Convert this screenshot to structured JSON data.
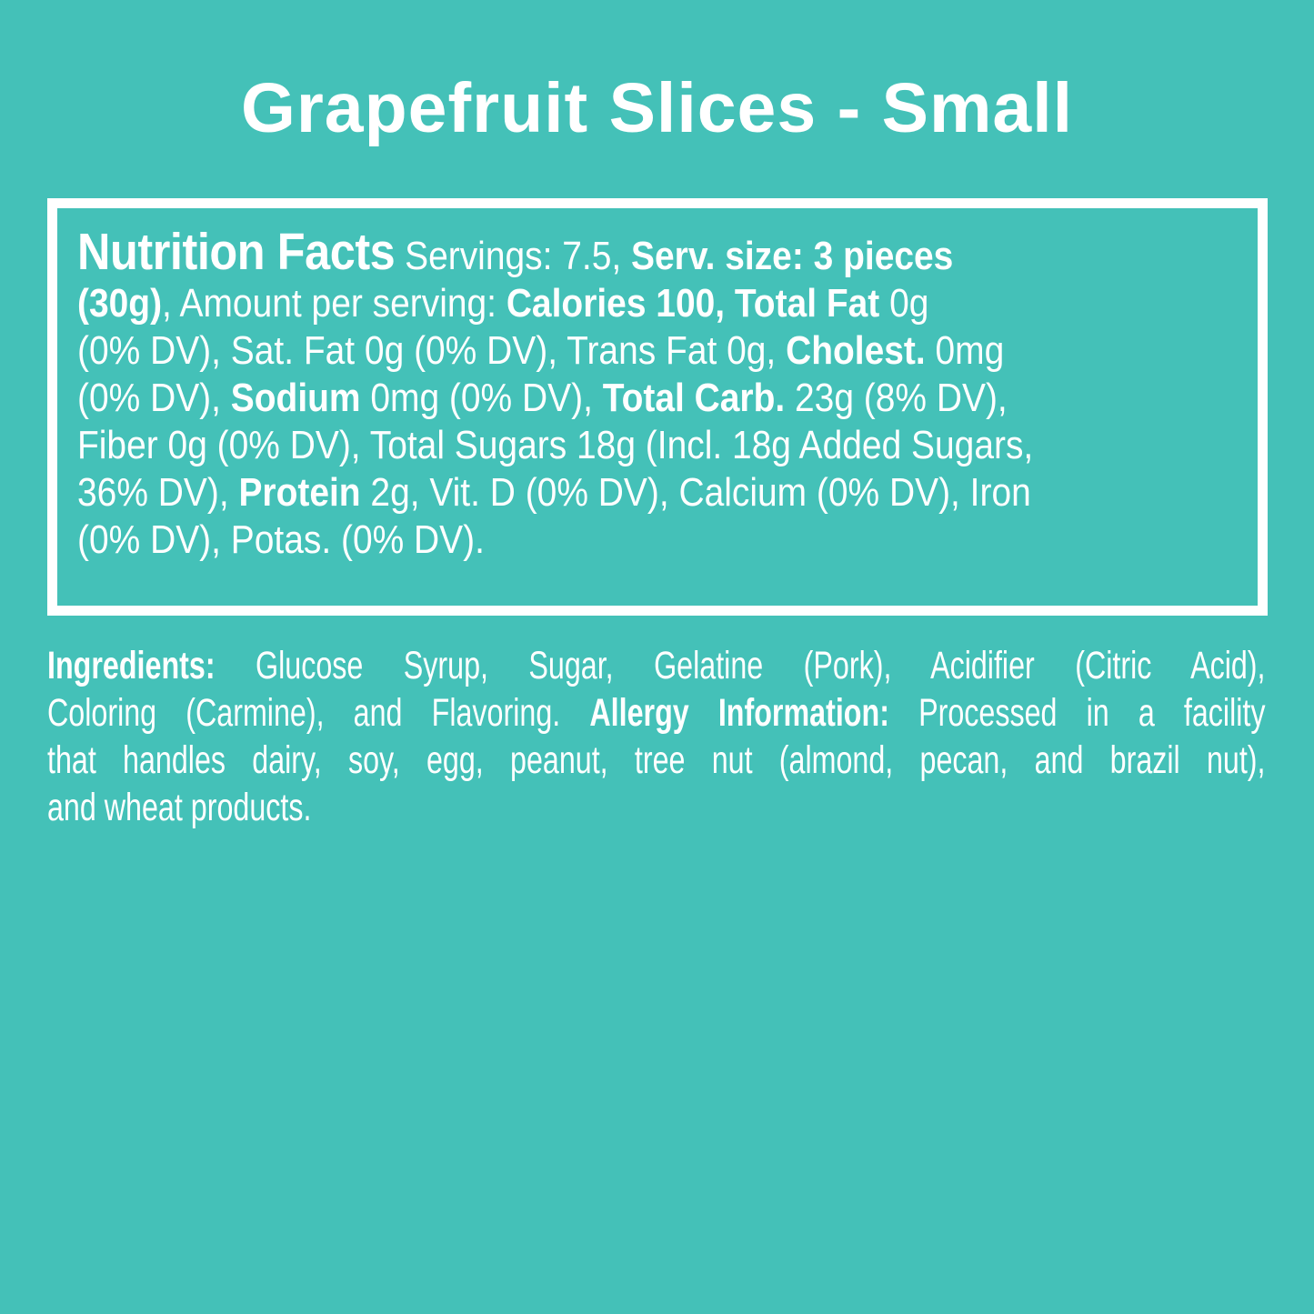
{
  "page": {
    "background_color": "#44c1b8",
    "text_color": "#ffffff",
    "panel_border_color": "#ffffff"
  },
  "title": "Grapefruit Slices - Small",
  "nutrition_panel": {
    "heading": "Nutrition Facts",
    "servings": "7.5",
    "serving_size": "3 pieces (30g)",
    "calories": "100",
    "runs": [
      {
        "name": "nutrition-facts-heading",
        "style": "heading",
        "text": "Nutrition Facts"
      },
      {
        "style": "regular",
        "text": " Servings: 7.5, "
      },
      {
        "style": "bold",
        "text": "Serv. size: 3 pieces\n(30g)"
      },
      {
        "style": "regular",
        "text": ", Amount per serving: "
      },
      {
        "style": "bold",
        "text": "Calories 100, Total Fat"
      },
      {
        "style": "regular",
        "text": " 0g\n(0% DV), Sat. Fat 0g (0% DV), Trans Fat 0g, "
      },
      {
        "style": "bold",
        "text": "Cholest."
      },
      {
        "style": "regular",
        "text": " 0mg\n(0% DV), "
      },
      {
        "style": "bold",
        "text": "Sodium"
      },
      {
        "style": "regular",
        "text": " 0mg (0% DV), "
      },
      {
        "style": "bold",
        "text": "Total Carb."
      },
      {
        "style": "regular",
        "text": " 23g (8% DV),\nFiber 0g (0% DV), Total Sugars 18g (Incl. 18g Added Sugars,\n36% DV), "
      },
      {
        "style": "bold",
        "text": "Protein"
      },
      {
        "style": "regular",
        "text": " 2g, Vit. D (0% DV), Calcium (0% DV), Iron\n(0% DV), Potas. (0% DV)."
      }
    ]
  },
  "ingredients_section": {
    "lines": [
      {
        "runs": [
          {
            "name": "ingredients-label",
            "style": "bold",
            "text": "Ingredients:"
          },
          {
            "style": "regular",
            "text": " Glucose Syrup, Sugar, Gelatine (Pork), Acidifier (Citric Acid),"
          }
        ]
      },
      {
        "runs": [
          {
            "style": "regular",
            "text": "Coloring (Carmine), and Flavoring. "
          },
          {
            "name": "allergy-information-label",
            "style": "bold",
            "text": "Allergy Information:"
          },
          {
            "style": "regular",
            "text": " Processed in a facility"
          }
        ]
      },
      {
        "runs": [
          {
            "style": "regular",
            "text": "that handles dairy, soy, egg, peanut, tree nut (almond, pecan, and brazil nut),"
          }
        ]
      },
      {
        "runs": [
          {
            "style": "regular",
            "text": "and wheat products."
          }
        ]
      }
    ]
  }
}
